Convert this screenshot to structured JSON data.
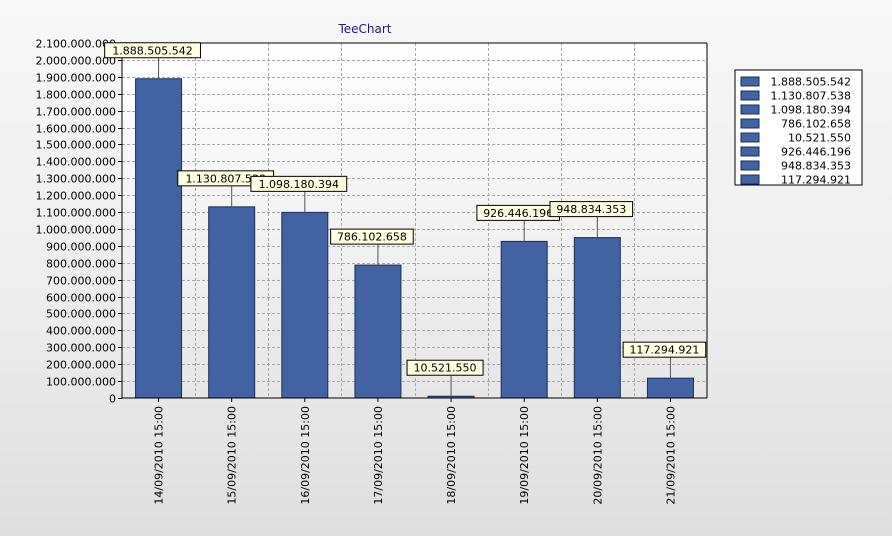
{
  "chart_data": {
    "type": "bar",
    "title": "TeeChart",
    "xlabel": "",
    "ylabel": "",
    "categories": [
      "14/09/2010 15:00",
      "15/09/2010 15:00",
      "16/09/2010 15:00",
      "17/09/2010 15:00",
      "18/09/2010 15:00",
      "19/09/2010 15:00",
      "20/09/2010 15:00",
      "21/09/2010 15:00"
    ],
    "values": [
      1888505542,
      1130807538,
      1098180394,
      786102658,
      10521550,
      926446196,
      948834353,
      117294921
    ],
    "data_labels": [
      "1.888.505.542",
      "1.130.807.538",
      "1.098.180.394",
      "786.102.658",
      "10.521.550",
      "926.446.196",
      "948.834.353",
      "117.294.921"
    ],
    "ylim": [
      0,
      2100000000
    ],
    "y_ticks": [
      0,
      100000000,
      200000000,
      300000000,
      400000000,
      500000000,
      600000000,
      700000000,
      800000000,
      900000000,
      1000000000,
      1100000000,
      1200000000,
      1300000000,
      1400000000,
      1500000000,
      1600000000,
      1700000000,
      1800000000,
      1900000000,
      2000000000,
      2100000000
    ],
    "y_tick_labels": [
      "0",
      "100.000.000",
      "200.000.000",
      "300.000.000",
      "400.000.000",
      "500.000.000",
      "600.000.000",
      "700.000.000",
      "800.000.000",
      "900.000.000",
      "1.000.000.000",
      "1.100.000.000",
      "1.200.000.000",
      "1.300.000.000",
      "1.400.000.000",
      "1.500.000.000",
      "1.600.000.000",
      "1.700.000.000",
      "1.800.000.000",
      "1.900.000.000",
      "2.000.000.000",
      "2.100.000.000"
    ],
    "legend": {
      "position": "right",
      "entries": [
        "1.888.505.542",
        "1.130.807.538",
        "1.098.180.394",
        "786.102.658",
        "10.521.550",
        "926.446.196",
        "948.834.353",
        "117.294.921"
      ]
    },
    "grid": true,
    "colors": {
      "bar": "#4163a3",
      "bar_border": "#1c2f57",
      "label_bg": "#ffffe1",
      "plot_bg_top": "#ffffff",
      "plot_bg_bottom": "#e4e4e4",
      "grid": "#a8a8a8",
      "title": "#1a1a80"
    }
  }
}
